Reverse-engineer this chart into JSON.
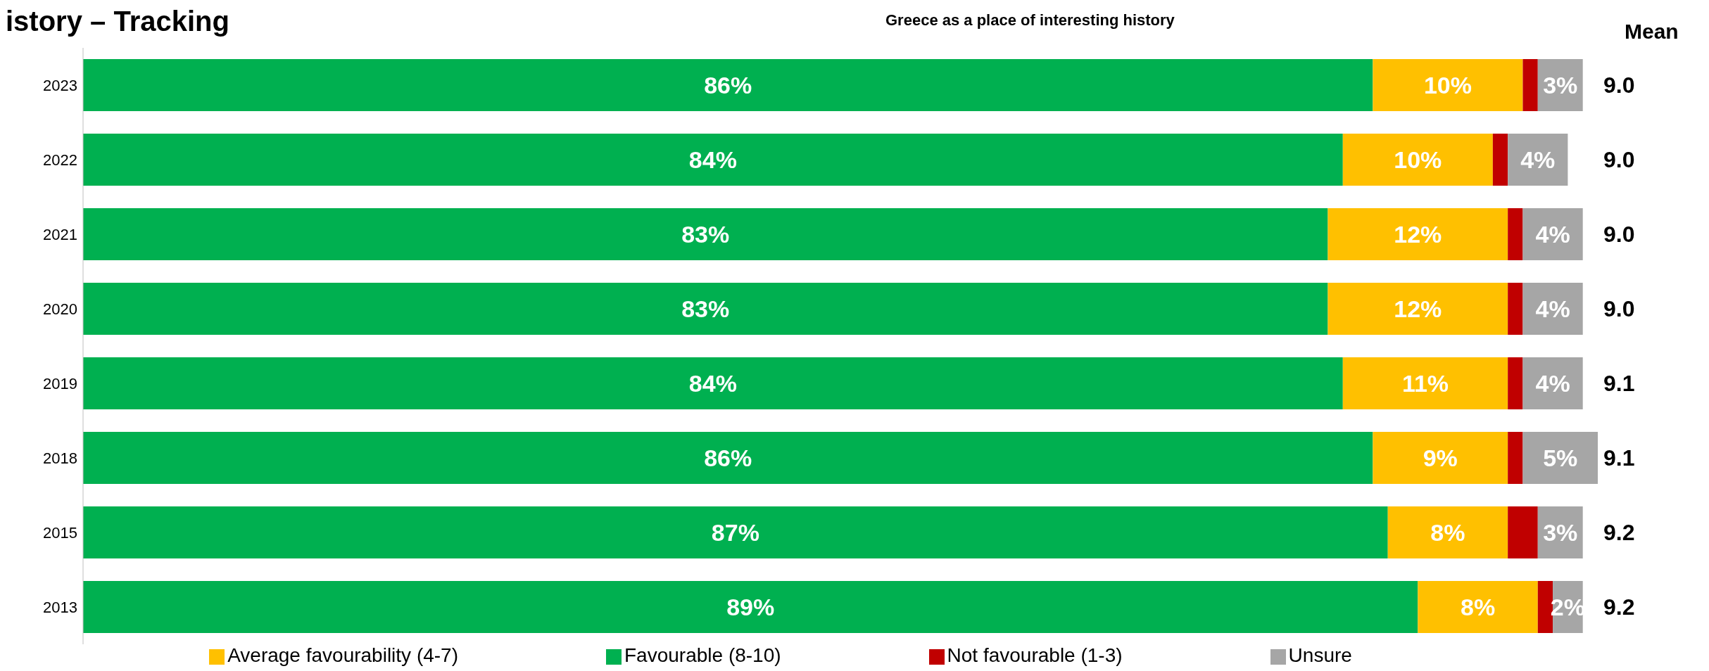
{
  "chart_data": {
    "type": "bar",
    "orientation": "horizontal",
    "stacked": true,
    "title": "istory – Tracking",
    "subtitle": "Greece as a place of interesting history",
    "categories": [
      "2023",
      "2022",
      "2021",
      "2020",
      "2019",
      "2018",
      "2015",
      "2013"
    ],
    "series": [
      {
        "name": "Favourable (8-10)",
        "color": "#00b050",
        "values": [
          86,
          84,
          83,
          83,
          84,
          86,
          87,
          89
        ],
        "value_labels": [
          "86%",
          "84%",
          "83%",
          "83%",
          "84%",
          "86%",
          "87%",
          "89%"
        ]
      },
      {
        "name": "Average favourability (4-7)",
        "color": "#ffc000",
        "values": [
          10,
          10,
          12,
          12,
          11,
          9,
          8,
          8
        ],
        "value_labels": [
          "10%",
          "10%",
          "12%",
          "12%",
          "11%",
          "9%",
          "8%",
          "8%"
        ]
      },
      {
        "name": "Not favourable (1-3)",
        "color": "#c00000",
        "values": [
          1,
          1,
          1,
          1,
          1,
          1,
          2,
          1
        ]
      },
      {
        "name": "Unsure",
        "color": "#a6a6a6",
        "values": [
          3,
          4,
          4,
          4,
          4,
          5,
          3,
          2
        ],
        "value_labels": [
          "3%",
          "4%",
          "4%",
          "4%",
          "4%",
          "5%",
          "3%",
          "2%"
        ]
      }
    ],
    "xlim": [
      0,
      101
    ],
    "tick_labels": "y",
    "legend": "bottom",
    "grid": false,
    "annotations": [
      "Mean",
      "9.0",
      "9.0",
      "9.0",
      "9.0",
      "9.1",
      "9.1",
      "9.2",
      "9.2"
    ]
  }
}
